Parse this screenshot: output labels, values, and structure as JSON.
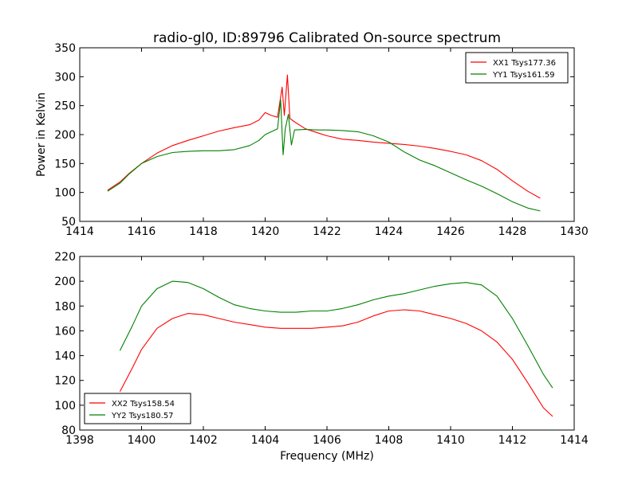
{
  "figure": {
    "title": "radio-gl0, ID:89796 Calibrated On-source spectrum"
  },
  "chart_data": [
    {
      "type": "line",
      "title": "radio-gl0, ID:89796 Calibrated On-source spectrum",
      "xlabel": "",
      "ylabel": "Power in Kelvin",
      "xlim": [
        1414,
        1430
      ],
      "ylim": [
        50,
        350
      ],
      "xticks": [
        1414,
        1416,
        1418,
        1420,
        1422,
        1424,
        1426,
        1428,
        1430
      ],
      "yticks": [
        50,
        100,
        150,
        200,
        250,
        300,
        350
      ],
      "legend_position": "top-right",
      "grid": false,
      "series": [
        {
          "name": "XX1 Tsys177.36",
          "color": "#ff0000",
          "points": [
            [
              1414.9,
              104
            ],
            [
              1415.3,
              118
            ],
            [
              1415.6,
              133
            ],
            [
              1416.0,
              150
            ],
            [
              1416.5,
              168
            ],
            [
              1417.0,
              181
            ],
            [
              1417.5,
              190
            ],
            [
              1418.0,
              198
            ],
            [
              1418.5,
              206
            ],
            [
              1419.0,
              212
            ],
            [
              1419.5,
              217
            ],
            [
              1419.8,
              225
            ],
            [
              1420.0,
              238
            ],
            [
              1420.2,
              233
            ],
            [
              1420.4,
              230
            ],
            [
              1420.55,
              282
            ],
            [
              1420.62,
              233
            ],
            [
              1420.72,
              303
            ],
            [
              1420.8,
              228
            ],
            [
              1420.95,
              222
            ],
            [
              1421.3,
              210
            ],
            [
              1421.7,
              203
            ],
            [
              1422.0,
              198
            ],
            [
              1422.5,
              192
            ],
            [
              1423.0,
              190
            ],
            [
              1423.5,
              187
            ],
            [
              1424.0,
              185
            ],
            [
              1424.5,
              183
            ],
            [
              1425.0,
              180
            ],
            [
              1425.5,
              176
            ],
            [
              1426.0,
              171
            ],
            [
              1426.5,
              165
            ],
            [
              1427.0,
              155
            ],
            [
              1427.5,
              140
            ],
            [
              1428.0,
              120
            ],
            [
              1428.5,
              102
            ],
            [
              1428.9,
              90
            ]
          ]
        },
        {
          "name": "YY1 Tsys161.59",
          "color": "#008000",
          "points": [
            [
              1414.9,
              102
            ],
            [
              1415.3,
              116
            ],
            [
              1415.6,
              132
            ],
            [
              1416.0,
              150
            ],
            [
              1416.5,
              162
            ],
            [
              1417.0,
              169
            ],
            [
              1417.5,
              171
            ],
            [
              1418.0,
              172
            ],
            [
              1418.5,
              172
            ],
            [
              1419.0,
              174
            ],
            [
              1419.5,
              181
            ],
            [
              1419.8,
              190
            ],
            [
              1420.0,
              200
            ],
            [
              1420.2,
              205
            ],
            [
              1420.4,
              210
            ],
            [
              1420.5,
              260
            ],
            [
              1420.58,
              165
            ],
            [
              1420.65,
              210
            ],
            [
              1420.75,
              235
            ],
            [
              1420.85,
              182
            ],
            [
              1420.95,
              208
            ],
            [
              1421.3,
              209
            ],
            [
              1421.7,
              208
            ],
            [
              1422.0,
              208
            ],
            [
              1422.5,
              207
            ],
            [
              1423.0,
              205
            ],
            [
              1423.5,
              198
            ],
            [
              1424.0,
              187
            ],
            [
              1424.5,
              170
            ],
            [
              1425.0,
              156
            ],
            [
              1425.5,
              146
            ],
            [
              1426.0,
              134
            ],
            [
              1426.5,
              122
            ],
            [
              1427.0,
              111
            ],
            [
              1427.5,
              98
            ],
            [
              1428.0,
              84
            ],
            [
              1428.5,
              73
            ],
            [
              1428.9,
              68
            ]
          ]
        }
      ]
    },
    {
      "type": "line",
      "title": "",
      "xlabel": "Frequency (MHz)",
      "ylabel": "",
      "xlim": [
        1398,
        1414
      ],
      "ylim": [
        80,
        220
      ],
      "xticks": [
        1398,
        1400,
        1402,
        1404,
        1406,
        1408,
        1410,
        1412,
        1414
      ],
      "yticks": [
        80,
        100,
        120,
        140,
        160,
        180,
        200,
        220
      ],
      "legend_position": "bottom-left",
      "grid": false,
      "series": [
        {
          "name": "XX2 Tsys158.54",
          "color": "#ff0000",
          "points": [
            [
              1399.3,
              111
            ],
            [
              1399.7,
              130
            ],
            [
              1400.0,
              145
            ],
            [
              1400.5,
              162
            ],
            [
              1401.0,
              170
            ],
            [
              1401.5,
              174
            ],
            [
              1402.0,
              173
            ],
            [
              1402.5,
              170
            ],
            [
              1403.0,
              167
            ],
            [
              1403.5,
              165
            ],
            [
              1404.0,
              163
            ],
            [
              1404.5,
              162
            ],
            [
              1405.0,
              162
            ],
            [
              1405.5,
              162
            ],
            [
              1406.0,
              163
            ],
            [
              1406.5,
              164
            ],
            [
              1407.0,
              167
            ],
            [
              1407.5,
              172
            ],
            [
              1408.0,
              176
            ],
            [
              1408.5,
              177
            ],
            [
              1409.0,
              176
            ],
            [
              1409.5,
              173
            ],
            [
              1410.0,
              170
            ],
            [
              1410.5,
              166
            ],
            [
              1411.0,
              160
            ],
            [
              1411.5,
              151
            ],
            [
              1412.0,
              137
            ],
            [
              1412.5,
              118
            ],
            [
              1413.0,
              98
            ],
            [
              1413.3,
              91
            ]
          ]
        },
        {
          "name": "YY2 Tsys180.57",
          "color": "#008000",
          "points": [
            [
              1399.3,
              144
            ],
            [
              1399.7,
              164
            ],
            [
              1400.0,
              180
            ],
            [
              1400.5,
              194
            ],
            [
              1401.0,
              200
            ],
            [
              1401.5,
              199
            ],
            [
              1402.0,
              194
            ],
            [
              1402.5,
              187
            ],
            [
              1403.0,
              181
            ],
            [
              1403.5,
              178
            ],
            [
              1404.0,
              176
            ],
            [
              1404.5,
              175
            ],
            [
              1405.0,
              175
            ],
            [
              1405.5,
              176
            ],
            [
              1406.0,
              176
            ],
            [
              1406.5,
              178
            ],
            [
              1407.0,
              181
            ],
            [
              1407.5,
              185
            ],
            [
              1408.0,
              188
            ],
            [
              1408.5,
              190
            ],
            [
              1409.0,
              193
            ],
            [
              1409.5,
              196
            ],
            [
              1410.0,
              198
            ],
            [
              1410.5,
              199
            ],
            [
              1411.0,
              197
            ],
            [
              1411.5,
              188
            ],
            [
              1412.0,
              170
            ],
            [
              1412.5,
              148
            ],
            [
              1413.0,
              125
            ],
            [
              1413.3,
              114
            ]
          ]
        }
      ]
    }
  ]
}
